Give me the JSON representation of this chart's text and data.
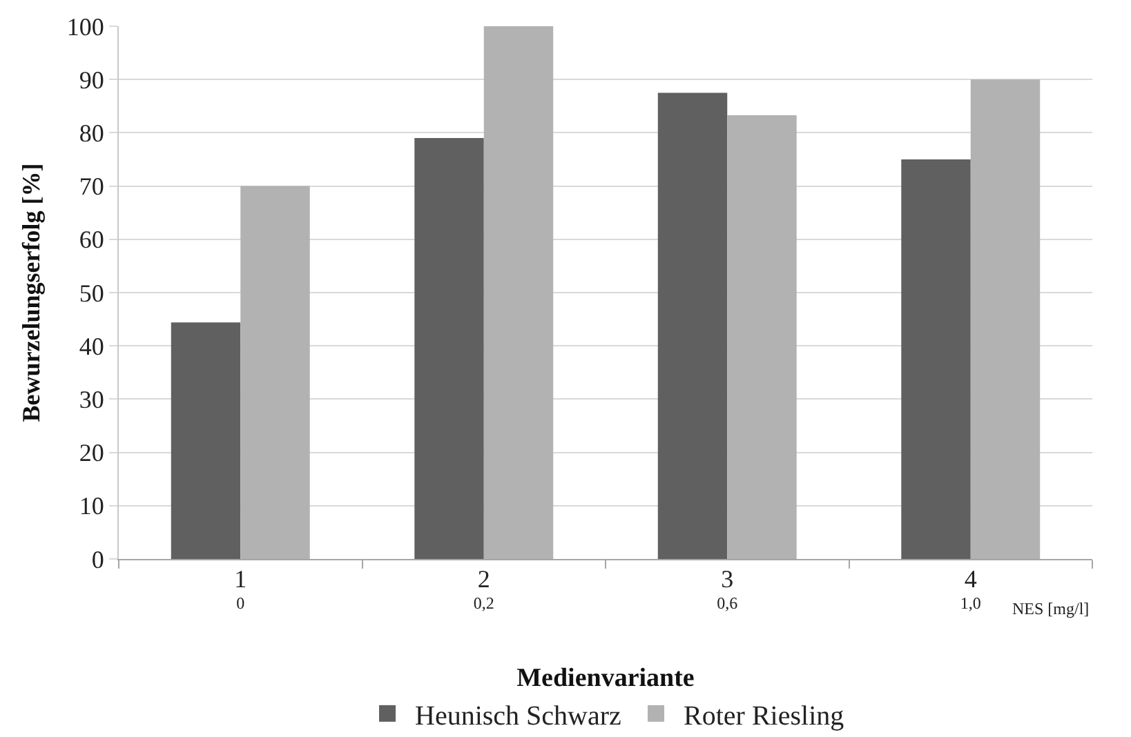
{
  "chart_data": {
    "type": "bar",
    "xlabel": "Medienvariante",
    "ylabel": "Bewurzelungserfolg [%]",
    "categories": [
      "1\n0",
      "2\n0,2",
      "3\n0,6",
      "4\n1,0"
    ],
    "series": [
      {
        "name": "Heunisch Schwarz",
        "color": "#606060",
        "values": [
          44.4,
          79,
          87.5,
          75
        ]
      },
      {
        "name": "Roter Riesling",
        "color": "#b2b2b2",
        "values": [
          70,
          100,
          83.3,
          90
        ]
      }
    ],
    "ylim": [
      0,
      100
    ],
    "yticks": [
      0,
      10,
      20,
      30,
      40,
      50,
      60,
      70,
      80,
      90,
      100
    ],
    "annotations": [
      "NES [mg/l]"
    ],
    "grid": "y",
    "legend": "bottom"
  }
}
